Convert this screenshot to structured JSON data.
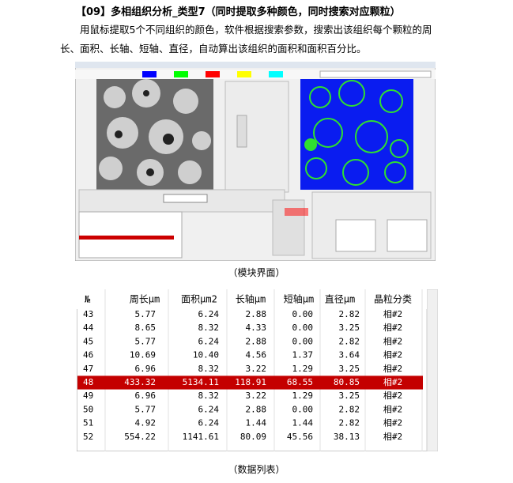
{
  "header": {
    "title": "【09】多相组织分析_类型7（同时提取多种颜色，同时搜索对应颗粒）"
  },
  "paragraph": "用鼠标提取5个不同组织的颜色，软件根据搜索参数，搜索出该组织每个颗粒的周长、面积、长轴、短轴、直径，自动算出该组织的面积和面积百分比。",
  "figure_caption": "（模块界面）",
  "table": {
    "columns": [
      "№",
      "周长μm",
      "面积μm2",
      "长轴μm",
      "短轴μm",
      "直径μm",
      "晶粒分类"
    ],
    "rows": [
      [
        "43",
        "5.77",
        "6.24",
        "2.88",
        "0.00",
        "2.82",
        "相#2"
      ],
      [
        "44",
        "8.65",
        "8.32",
        "4.33",
        "0.00",
        "3.25",
        "相#2"
      ],
      [
        "45",
        "5.77",
        "6.24",
        "2.88",
        "0.00",
        "2.82",
        "相#2"
      ],
      [
        "46",
        "10.69",
        "10.40",
        "4.56",
        "1.37",
        "3.64",
        "相#2"
      ],
      [
        "47",
        "6.96",
        "8.32",
        "3.22",
        "1.29",
        "3.25",
        "相#2"
      ],
      [
        "48",
        "433.32",
        "5134.11",
        "118.91",
        "68.55",
        "80.85",
        "相#2"
      ],
      [
        "49",
        "6.96",
        "8.32",
        "3.22",
        "1.29",
        "3.25",
        "相#2"
      ],
      [
        "50",
        "5.77",
        "6.24",
        "2.88",
        "0.00",
        "2.82",
        "相#2"
      ],
      [
        "51",
        "4.92",
        "6.24",
        "1.44",
        "1.44",
        "2.82",
        "相#2"
      ],
      [
        "52",
        "554.22",
        "1141.61",
        "80.09",
        "45.56",
        "38.13",
        "相#2"
      ]
    ],
    "highlight_row": 5
  },
  "table_caption": "（数据列表）"
}
